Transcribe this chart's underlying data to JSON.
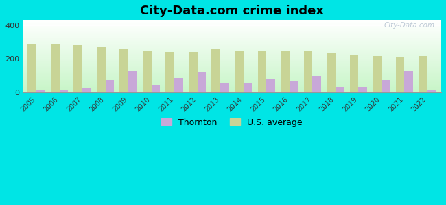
{
  "years": [
    2005,
    2006,
    2007,
    2008,
    2009,
    2010,
    2011,
    2012,
    2013,
    2014,
    2015,
    2016,
    2017,
    2018,
    2019,
    2020,
    2021,
    2022
  ],
  "thornton": [
    15,
    12,
    25,
    75,
    125,
    42,
    85,
    120,
    55,
    60,
    80,
    68,
    100,
    32,
    30,
    75,
    125,
    15
  ],
  "us_average": [
    285,
    285,
    280,
    270,
    255,
    248,
    242,
    240,
    258,
    245,
    247,
    250,
    245,
    235,
    225,
    215,
    210,
    215
  ],
  "title": "City-Data.com crime index",
  "thornton_label": "Thornton",
  "us_label": "U.S. average",
  "thornton_color": "#c8a8d8",
  "us_color": "#c8d496",
  "bg_outer": "#00e5e5",
  "ylim": [
    0,
    430
  ],
  "yticks": [
    0,
    200,
    400
  ],
  "bar_width": 0.38,
  "title_fontsize": 13,
  "watermark": "City-Data.com"
}
